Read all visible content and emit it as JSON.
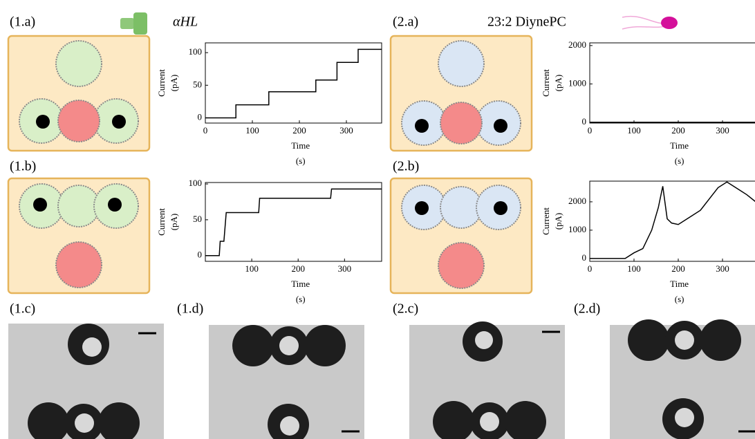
{
  "panels": [
    "(1.a)",
    "(1.b)",
    "(1.c)",
    "(1.d)",
    "(2.a)",
    "(2.b)",
    "(2.c)",
    "(2.d)"
  ],
  "legend": {
    "protein": "αHL",
    "lipid": "23:2 DiynePC"
  },
  "chart_data": [
    {
      "type": "line",
      "xlabel": [
        "Time",
        "(s)"
      ],
      "ylabel": [
        "Current",
        "(pA)"
      ],
      "xlim": [
        0,
        375
      ],
      "ylim": [
        -8,
        115
      ],
      "xticks": [
        0,
        100,
        200,
        300
      ],
      "yticks": [
        0,
        50,
        100
      ],
      "x": [
        0,
        65,
        65,
        135,
        135,
        235,
        235,
        280,
        280,
        325,
        325,
        375
      ],
      "series": [
        {
          "color": "#000000",
          "values": [
            0,
            0,
            20,
            20,
            40,
            40,
            58,
            58,
            85,
            85,
            105,
            105
          ]
        }
      ]
    },
    {
      "type": "line",
      "xlabel": [
        "Time",
        "(s)"
      ],
      "ylabel": [
        "Current",
        "(pA)"
      ],
      "xlim": [
        0,
        380
      ],
      "ylim": [
        -8,
        102
      ],
      "xticks": [
        100,
        200,
        300
      ],
      "yticks": [
        0,
        50,
        100
      ],
      "x": [
        0,
        30,
        32,
        40,
        45,
        115,
        117,
        270,
        272,
        380
      ],
      "series": [
        {
          "color": "#000000",
          "values": [
            0,
            0,
            20,
            20,
            60,
            60,
            80,
            80,
            93,
            93
          ]
        }
      ]
    },
    {
      "type": "line",
      "xlabel": [
        "Time",
        "(s)"
      ],
      "ylabel": [
        "Current",
        "(pA)"
      ],
      "xlim": [
        0,
        375
      ],
      "ylim": [
        -20,
        2070
      ],
      "xticks": [
        0,
        100,
        200,
        300
      ],
      "yticks": [
        0,
        1000,
        2000
      ],
      "x": [
        0,
        375
      ],
      "series": [
        {
          "color": "#000000",
          "values": [
            0,
            0
          ]
        }
      ]
    },
    {
      "type": "line",
      "xlabel": [
        "Time",
        "(s)"
      ],
      "ylabel": [
        "Current",
        "(pA)"
      ],
      "xlim": [
        0,
        375
      ],
      "ylim": [
        -100,
        2730
      ],
      "xticks": [
        0,
        100,
        200,
        300
      ],
      "yticks": [
        0,
        1000,
        2000
      ],
      "x": [
        0,
        80,
        100,
        120,
        140,
        155,
        165,
        175,
        185,
        200,
        225,
        250,
        270,
        290,
        310,
        325,
        340,
        355,
        375
      ],
      "series": [
        {
          "color": "#000000",
          "values": [
            0,
            0,
            200,
            350,
            1000,
            1800,
            2550,
            1400,
            1250,
            1200,
            1450,
            1700,
            2100,
            2500,
            2700,
            2550,
            2400,
            2250,
            2000
          ]
        }
      ]
    }
  ]
}
